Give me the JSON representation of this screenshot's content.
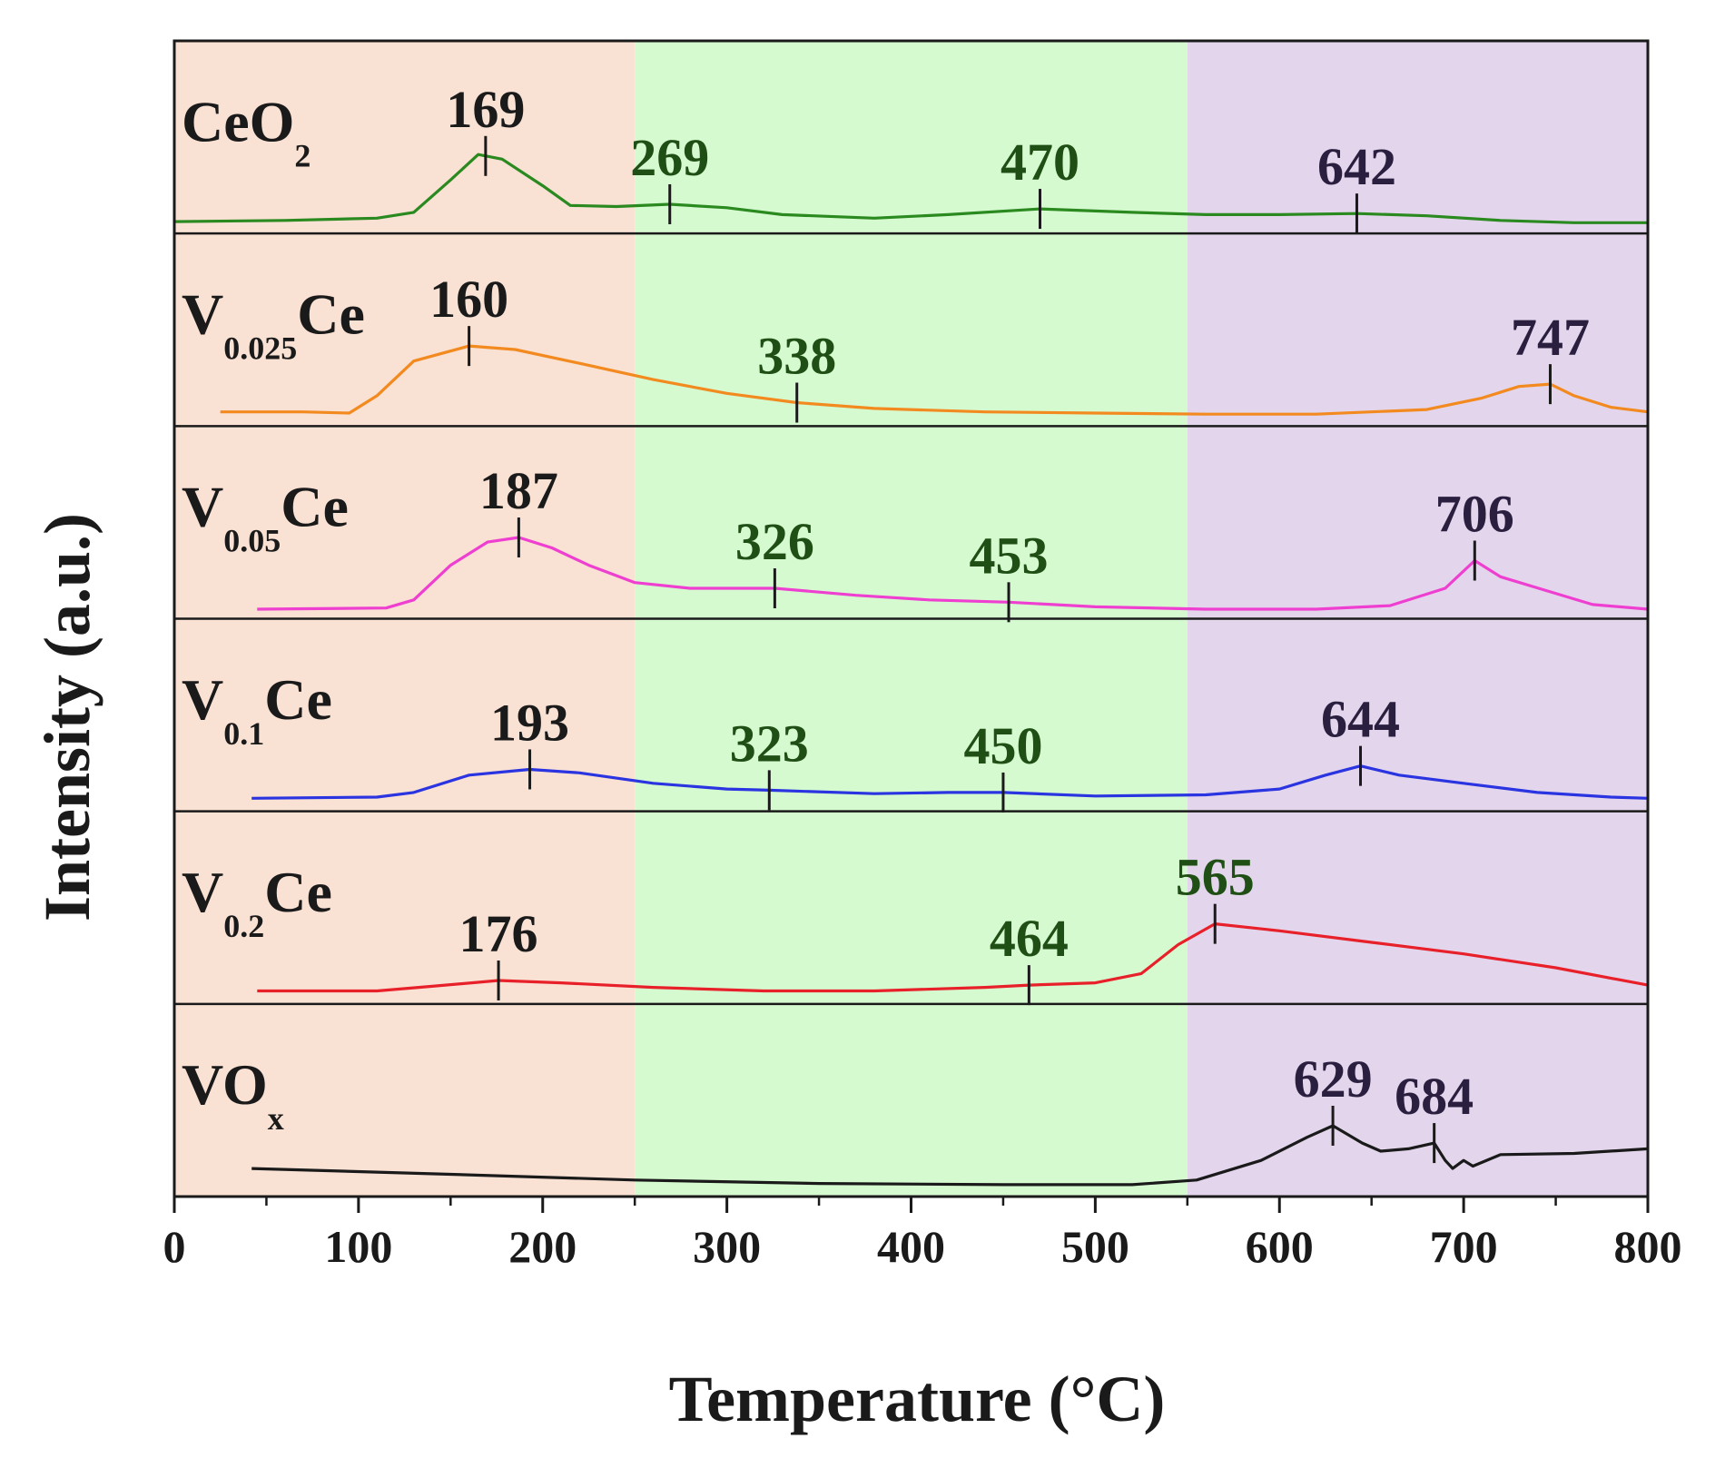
{
  "chart_data": {
    "type": "line",
    "title": "",
    "xlabel": "Temperature (°C)",
    "ylabel": "Intensity (a.u.)",
    "xlim": [
      0,
      800
    ],
    "x_ticks": [
      "0",
      "100",
      "200",
      "300",
      "400",
      "500",
      "600",
      "700",
      "800"
    ],
    "grid": false,
    "legend": "none",
    "regions": [
      {
        "x_range": [
          0,
          250
        ],
        "color": "#f9e1d4"
      },
      {
        "x_range": [
          250,
          550
        ],
        "color": "#d6fad0"
      },
      {
        "x_range": [
          550,
          800
        ],
        "color": "#e3d6ec"
      }
    ],
    "panels": [
      {
        "name": "CeO",
        "sub": "2",
        "color": "#2a8a1f",
        "points": [
          [
            0,
            0.04
          ],
          [
            60,
            0.05
          ],
          [
            110,
            0.07
          ],
          [
            130,
            0.12
          ],
          [
            150,
            0.4
          ],
          [
            165,
            0.62
          ],
          [
            178,
            0.58
          ],
          [
            200,
            0.35
          ],
          [
            215,
            0.18
          ],
          [
            240,
            0.17
          ],
          [
            269,
            0.19
          ],
          [
            300,
            0.16
          ],
          [
            330,
            0.1
          ],
          [
            380,
            0.07
          ],
          [
            420,
            0.1
          ],
          [
            470,
            0.15
          ],
          [
            520,
            0.12
          ],
          [
            560,
            0.1
          ],
          [
            600,
            0.1
          ],
          [
            642,
            0.11
          ],
          [
            680,
            0.09
          ],
          [
            720,
            0.05
          ],
          [
            760,
            0.03
          ],
          [
            800,
            0.03
          ]
        ],
        "peaks": [
          {
            "x": 169,
            "label": "169",
            "color": "#1a1a1a"
          },
          {
            "x": 269,
            "label": "269",
            "color": "#1f4f14"
          },
          {
            "x": 470,
            "label": "470",
            "color": "#1f4f14"
          },
          {
            "x": 642,
            "label": "642",
            "color": "#2a1f3f"
          }
        ]
      },
      {
        "name": "V",
        "sub": "0.025",
        "suffix": "Ce",
        "color": "#f28a1f",
        "points": [
          [
            25,
            0.06
          ],
          [
            70,
            0.06
          ],
          [
            95,
            0.05
          ],
          [
            110,
            0.2
          ],
          [
            130,
            0.5
          ],
          [
            160,
            0.63
          ],
          [
            185,
            0.6
          ],
          [
            220,
            0.48
          ],
          [
            260,
            0.34
          ],
          [
            300,
            0.22
          ],
          [
            338,
            0.14
          ],
          [
            380,
            0.09
          ],
          [
            440,
            0.06
          ],
          [
            500,
            0.05
          ],
          [
            560,
            0.04
          ],
          [
            620,
            0.04
          ],
          [
            680,
            0.08
          ],
          [
            710,
            0.18
          ],
          [
            730,
            0.28
          ],
          [
            747,
            0.3
          ],
          [
            760,
            0.2
          ],
          [
            780,
            0.1
          ],
          [
            800,
            0.06
          ]
        ],
        "peaks": [
          {
            "x": 160,
            "label": "160",
            "color": "#1a1a1a"
          },
          {
            "x": 338,
            "label": "338",
            "color": "#1f4f14"
          },
          {
            "x": 747,
            "label": "747",
            "color": "#2a1f3f"
          }
        ]
      },
      {
        "name": "V",
        "sub": "0.05",
        "suffix": "Ce",
        "color": "#ee3fd0",
        "points": [
          [
            45,
            0.02
          ],
          [
            115,
            0.03
          ],
          [
            130,
            0.1
          ],
          [
            150,
            0.4
          ],
          [
            170,
            0.6
          ],
          [
            187,
            0.64
          ],
          [
            205,
            0.55
          ],
          [
            225,
            0.4
          ],
          [
            250,
            0.25
          ],
          [
            280,
            0.2
          ],
          [
            326,
            0.2
          ],
          [
            370,
            0.14
          ],
          [
            410,
            0.1
          ],
          [
            453,
            0.08
          ],
          [
            500,
            0.04
          ],
          [
            560,
            0.02
          ],
          [
            620,
            0.02
          ],
          [
            660,
            0.05
          ],
          [
            690,
            0.2
          ],
          [
            706,
            0.44
          ],
          [
            720,
            0.3
          ],
          [
            745,
            0.18
          ],
          [
            770,
            0.06
          ],
          [
            800,
            0.02
          ]
        ],
        "peaks": [
          {
            "x": 187,
            "label": "187",
            "color": "#1a1a1a"
          },
          {
            "x": 326,
            "label": "326",
            "color": "#1f4f14"
          },
          {
            "x": 453,
            "label": "453",
            "color": "#1f4f14"
          },
          {
            "x": 706,
            "label": "706",
            "color": "#2a1f3f"
          }
        ]
      },
      {
        "name": "V",
        "sub": "0.1",
        "suffix": "Ce",
        "color": "#2a34e0",
        "points": [
          [
            42,
            0.05
          ],
          [
            110,
            0.06
          ],
          [
            130,
            0.1
          ],
          [
            160,
            0.25
          ],
          [
            193,
            0.3
          ],
          [
            220,
            0.27
          ],
          [
            260,
            0.18
          ],
          [
            300,
            0.13
          ],
          [
            323,
            0.12
          ],
          [
            380,
            0.09
          ],
          [
            420,
            0.1
          ],
          [
            450,
            0.1
          ],
          [
            500,
            0.07
          ],
          [
            560,
            0.08
          ],
          [
            600,
            0.13
          ],
          [
            625,
            0.25
          ],
          [
            644,
            0.33
          ],
          [
            665,
            0.25
          ],
          [
            700,
            0.18
          ],
          [
            740,
            0.1
          ],
          [
            780,
            0.06
          ],
          [
            800,
            0.05
          ]
        ],
        "peaks": [
          {
            "x": 193,
            "label": "193",
            "color": "#1a1a1a"
          },
          {
            "x": 323,
            "label": "323",
            "color": "#1f4f14"
          },
          {
            "x": 450,
            "label": "450",
            "color": "#1f4f14"
          },
          {
            "x": 644,
            "label": "644",
            "color": "#2a1f3f"
          }
        ]
      },
      {
        "name": "V",
        "sub": "0.2",
        "suffix": "Ce",
        "color": "#e8202a",
        "points": [
          [
            45,
            0.05
          ],
          [
            110,
            0.05
          ],
          [
            140,
            0.09
          ],
          [
            176,
            0.14
          ],
          [
            210,
            0.12
          ],
          [
            260,
            0.08
          ],
          [
            320,
            0.05
          ],
          [
            380,
            0.05
          ],
          [
            440,
            0.08
          ],
          [
            464,
            0.1
          ],
          [
            500,
            0.12
          ],
          [
            525,
            0.2
          ],
          [
            545,
            0.45
          ],
          [
            565,
            0.63
          ],
          [
            600,
            0.57
          ],
          [
            650,
            0.47
          ],
          [
            700,
            0.37
          ],
          [
            750,
            0.25
          ],
          [
            800,
            0.1
          ]
        ],
        "peaks": [
          {
            "x": 176,
            "label": "176",
            "color": "#1a1a1a"
          },
          {
            "x": 464,
            "label": "464",
            "color": "#1f4f14"
          },
          {
            "x": 565,
            "label": "565",
            "color": "#1f4f14"
          }
        ]
      },
      {
        "name": "VO",
        "sub": "x",
        "color": "#1a1a1a",
        "points": [
          [
            42,
            0.18
          ],
          [
            150,
            0.13
          ],
          [
            250,
            0.08
          ],
          [
            350,
            0.05
          ],
          [
            450,
            0.04
          ],
          [
            520,
            0.04
          ],
          [
            555,
            0.08
          ],
          [
            590,
            0.25
          ],
          [
            615,
            0.45
          ],
          [
            629,
            0.55
          ],
          [
            645,
            0.4
          ],
          [
            655,
            0.33
          ],
          [
            670,
            0.35
          ],
          [
            684,
            0.4
          ],
          [
            690,
            0.25
          ],
          [
            694,
            0.18
          ],
          [
            700,
            0.25
          ],
          [
            705,
            0.2
          ],
          [
            720,
            0.3
          ],
          [
            760,
            0.31
          ],
          [
            800,
            0.35
          ]
        ],
        "peaks": [
          {
            "x": 629,
            "label": "629",
            "color": "#2a1f3f"
          },
          {
            "x": 684,
            "label": "684",
            "color": "#2a1f3f"
          }
        ]
      }
    ]
  }
}
